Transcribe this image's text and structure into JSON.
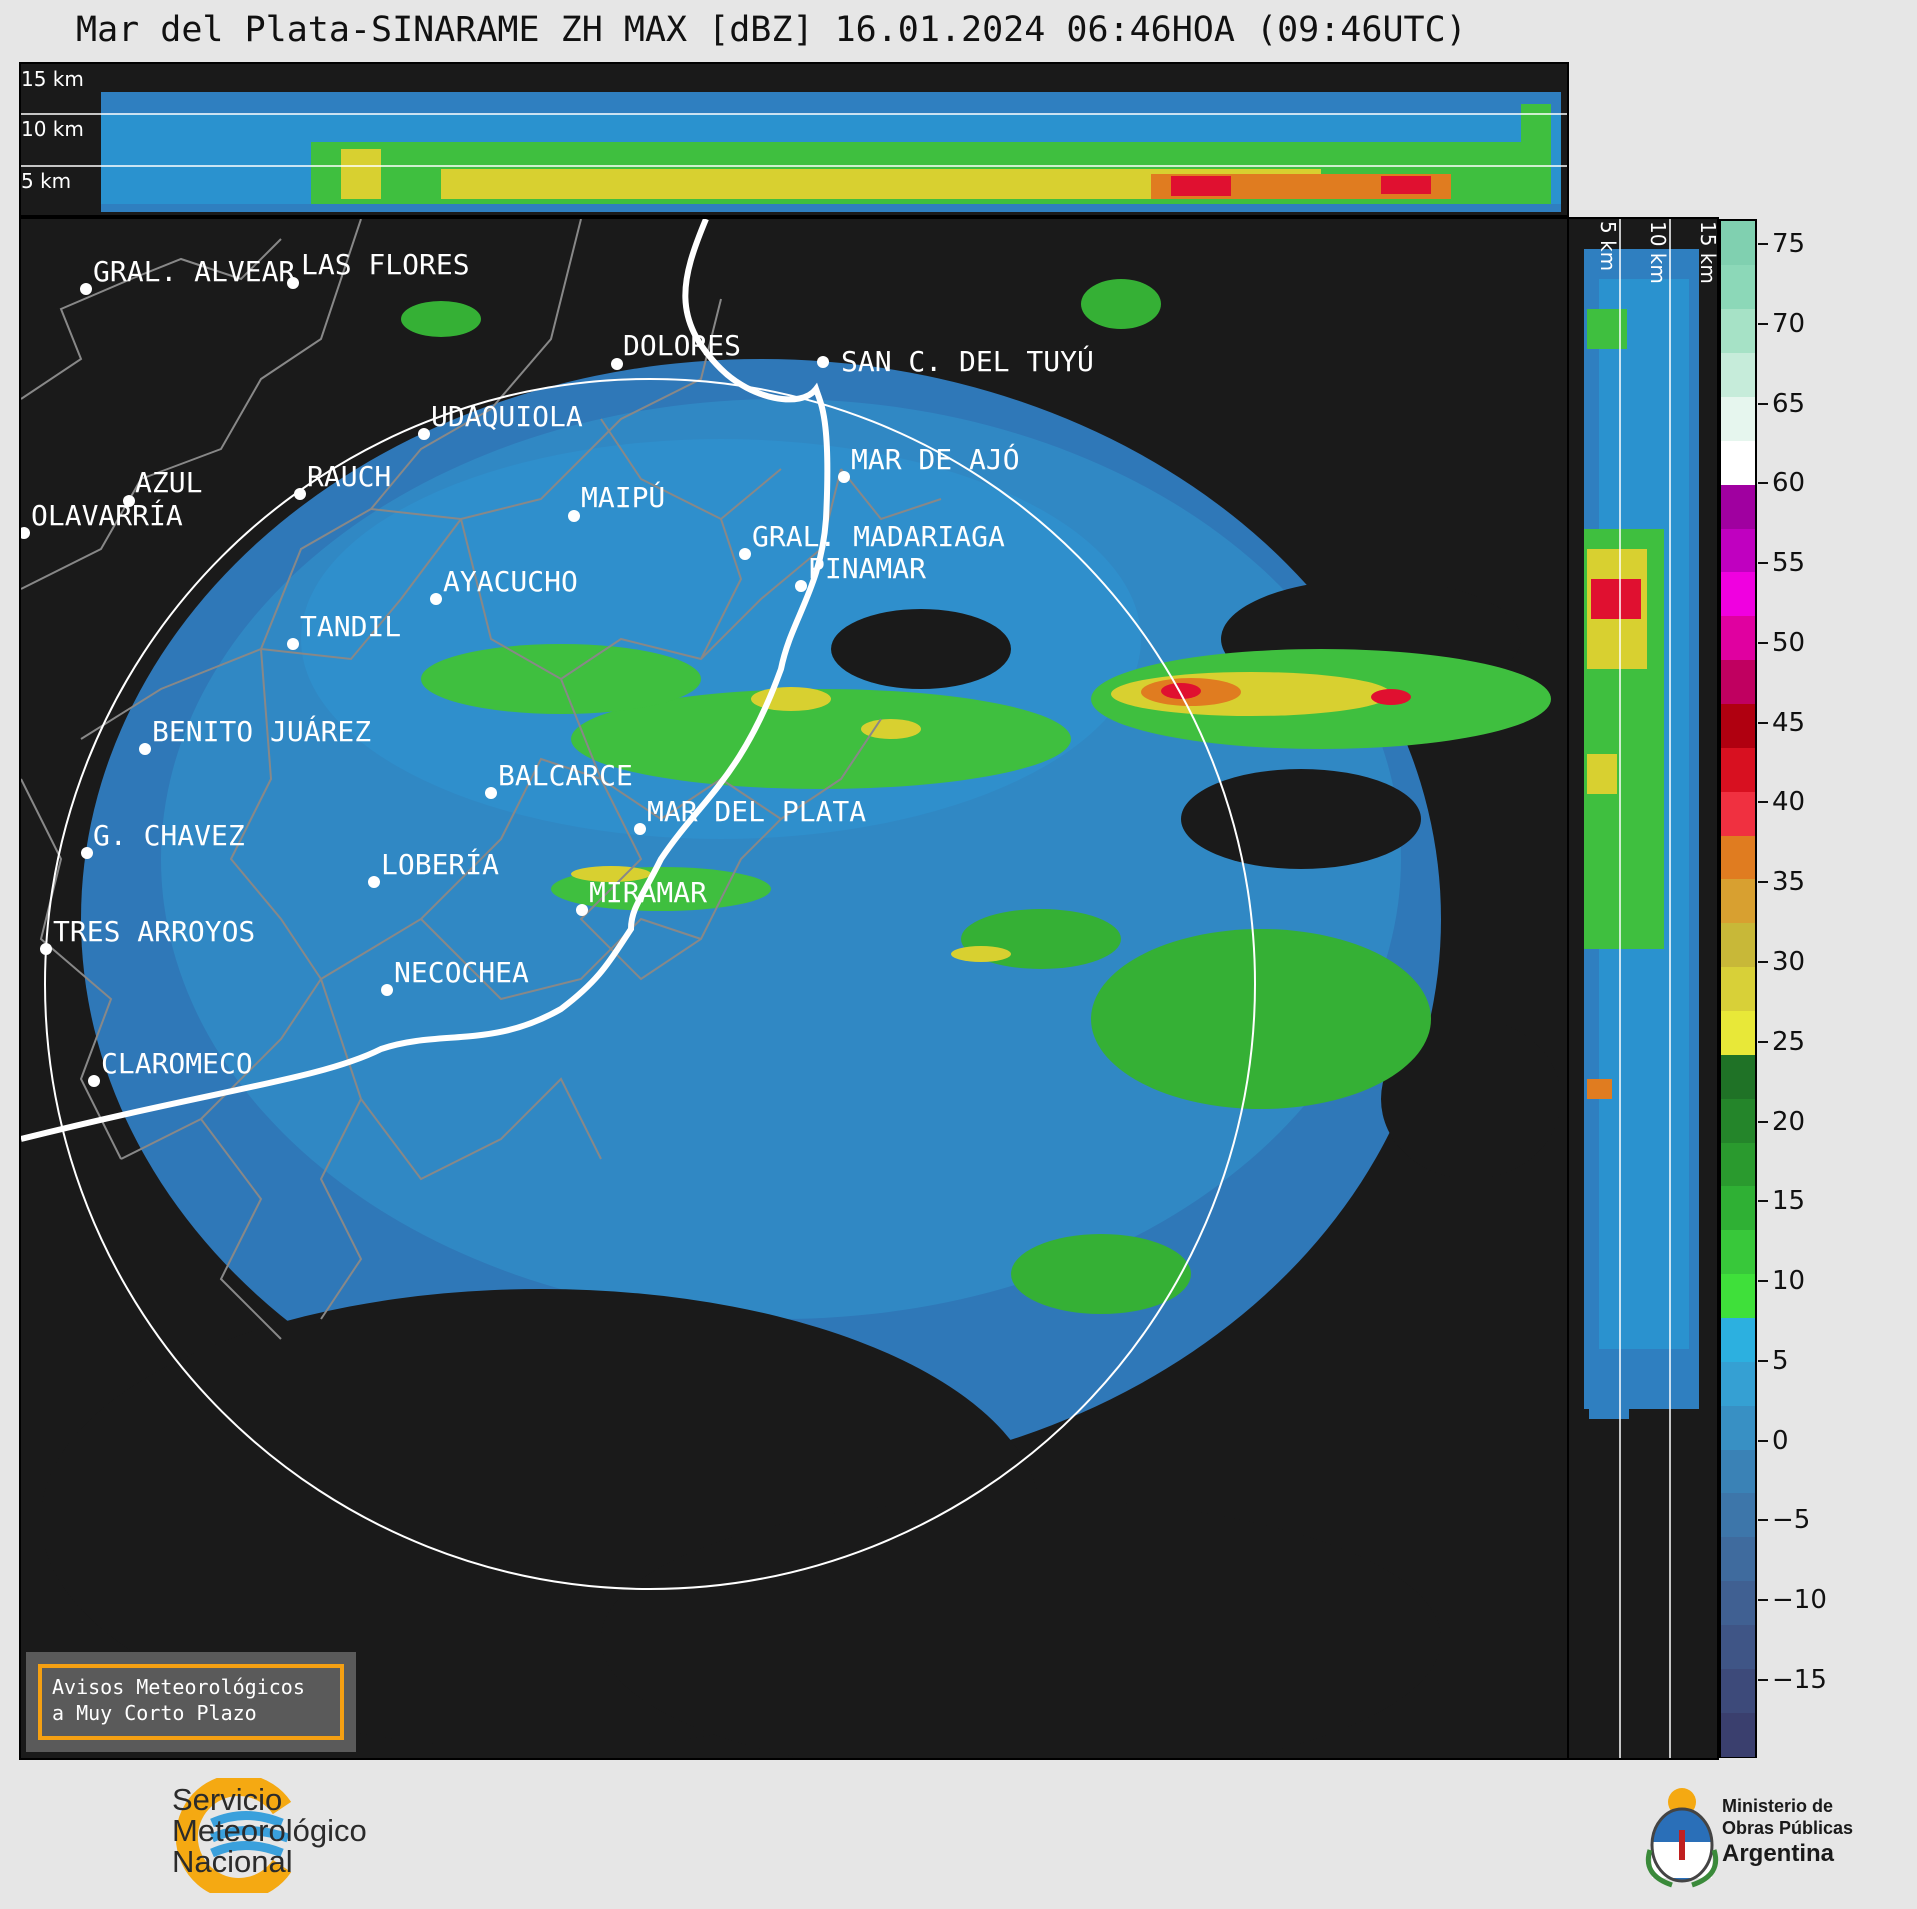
{
  "title": "Mar del Plata-SINARAME ZH MAX [dBZ] 16.01.2024 06:46HOA (09:46UTC)",
  "altitude_labels": [
    "15 km",
    "10 km",
    "5 km"
  ],
  "cities": [
    {
      "name": "GRAL. ALVEAR"
    },
    {
      "name": "LAS FLORES"
    },
    {
      "name": "DOLORES"
    },
    {
      "name": "SAN C. DEL TUYÚ"
    },
    {
      "name": "UDAQUIOLA"
    },
    {
      "name": "MAR DE AJÓ"
    },
    {
      "name": "AZUL"
    },
    {
      "name": "RAUCH"
    },
    {
      "name": "OLAVARRÍA"
    },
    {
      "name": "MAIPÚ"
    },
    {
      "name": "GRAL. MADARIAGA"
    },
    {
      "name": "PINAMAR"
    },
    {
      "name": "AYACUCHO"
    },
    {
      "name": "TANDIL"
    },
    {
      "name": "BENITO JUÁREZ"
    },
    {
      "name": "BALCARCE"
    },
    {
      "name": "MAR DEL PLATA"
    },
    {
      "name": "G. CHAVEZ"
    },
    {
      "name": "LOBERÍA"
    },
    {
      "name": "MIRAMAR"
    },
    {
      "name": "TRES ARROYOS"
    },
    {
      "name": "NECOCHEA"
    },
    {
      "name": "CLAROMECO"
    }
  ],
  "colorbar": {
    "unit": "dBZ",
    "ticks": [
      "75",
      "70",
      "65",
      "60",
      "55",
      "50",
      "45",
      "40",
      "35",
      "30",
      "25",
      "20",
      "15",
      "10",
      "5",
      "0",
      "−5",
      "−10",
      "−15"
    ],
    "colors": [
      "#3a3f6e",
      "#3d4a7a",
      "#3f5586",
      "#406092",
      "#3f6b9e",
      "#3d76aa",
      "#3a82b6",
      "#3890c4",
      "#35a0d3",
      "#2cb0e0",
      "#3fe03a",
      "#38c83a",
      "#2fb034",
      "#2a9a2e",
      "#24852a",
      "#1f7226",
      "#e8e838",
      "#d8d038",
      "#c8b838",
      "#d8a030",
      "#e07c20",
      "#f03040",
      "#d81020",
      "#b00010",
      "#c00060",
      "#e000a0",
      "#f000e0",
      "#c000c0",
      "#a000a0",
      "#ffffff",
      "#e6f6ee",
      "#c6ecda",
      "#a6e2c6",
      "#8cd8b8",
      "#80d0b0"
    ]
  },
  "notice": {
    "line1": "Avisos Meteorológicos",
    "line2": "a Muy Corto Plazo"
  },
  "logos": {
    "smn_line1": "Servicio",
    "smn_line2": "Meteorológico",
    "smn_line3": "Nacional",
    "mop_line1": "Ministerio de",
    "mop_line2": "Obras Públicas",
    "mop_line3": "Argentina"
  }
}
